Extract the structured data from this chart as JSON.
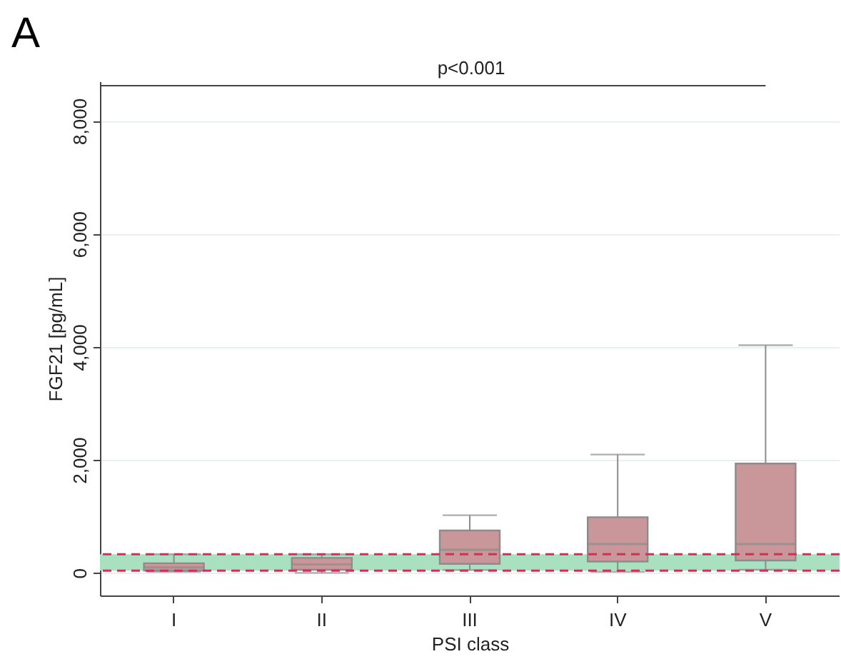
{
  "chart_data": {
    "type": "box",
    "title": "A",
    "xlabel": "PSI class",
    "ylabel": "FGF21 [pg/mL]",
    "categories": [
      "I",
      "II",
      "III",
      "IV",
      "V"
    ],
    "boxes": [
      {
        "low": 20,
        "q1": 40,
        "median": 95,
        "q3": 170,
        "high": 330
      },
      {
        "low": 0,
        "q1": 55,
        "median": 150,
        "q3": 265,
        "high": 330
      },
      {
        "low": 50,
        "q1": 160,
        "median": 410,
        "q3": 750,
        "high": 1020
      },
      {
        "low": 20,
        "q1": 200,
        "median": 510,
        "q3": 985,
        "high": 2095
      },
      {
        "low": 55,
        "q1": 220,
        "median": 510,
        "q3": 1935,
        "high": 4030
      }
    ],
    "color": "#c9979a",
    "ylim": [
      -400,
      8700
    ],
    "yticks": [
      0,
      {
        "value": 2000,
        "label": "2,000"
      },
      {
        "value": 4000,
        "label": "4,000"
      },
      {
        "value": 6000,
        "label": "6,000"
      },
      {
        "value": 8000,
        "label": "8,000"
      }
    ],
    "grid": "y",
    "bands": [
      {
        "axis": "y",
        "from": 40,
        "to": 330,
        "color": "#a8e0c0"
      }
    ],
    "ref_lines": [
      {
        "axis": "y",
        "value": 40,
        "color": "#d0305a",
        "line_style": "dashed"
      },
      {
        "axis": "y",
        "value": 330,
        "color": "#d0305a",
        "line_style": "dashed"
      }
    ],
    "annotations": [
      "p<0.001"
    ]
  }
}
